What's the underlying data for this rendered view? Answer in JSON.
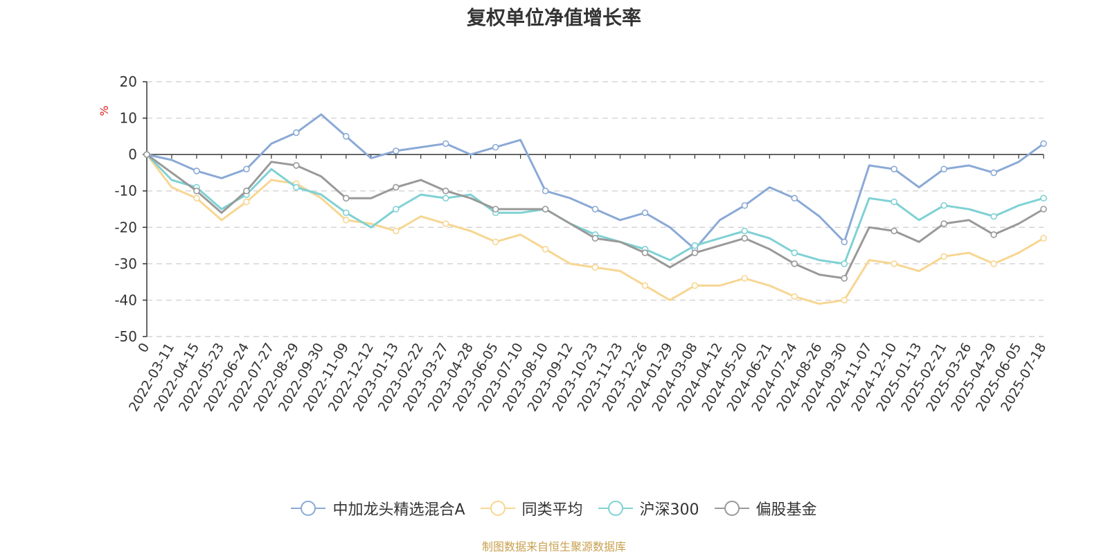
{
  "page": {
    "source_note": "制图数据来自恒生聚源数据库"
  },
  "chart_data": {
    "type": "line",
    "title": "复权单位净值增长率",
    "ylabel": "%",
    "xlabel": "",
    "ylim": [
      -50,
      20
    ],
    "yticks": [
      20,
      10,
      0,
      -10,
      -20,
      -30,
      -40,
      -50
    ],
    "y_gridlines": "dashed",
    "legend_position": "bottom",
    "x_tick_labels": [
      "0",
      "2022-03-11",
      "2022-04-15",
      "2022-05-23",
      "2022-06-24",
      "2022-07-27",
      "2022-08-29",
      "2022-09-30",
      "2022-11-09",
      "2022-12-12",
      "2023-01-13",
      "2023-02-22",
      "2023-03-27",
      "2023-04-28",
      "2023-06-05",
      "2023-07-10",
      "2023-08-10",
      "2023-09-12",
      "2023-10-23",
      "2023-11-23",
      "2023-12-26",
      "2024-01-29",
      "2024-03-08",
      "2024-04-12",
      "2024-05-20",
      "2024-06-21",
      "2024-07-24",
      "2024-08-26",
      "2024-09-30",
      "2024-11-07",
      "2024-12-10",
      "2025-01-13",
      "2025-02-21",
      "2025-03-26",
      "2025-04-29",
      "2025-06-05",
      "2025-07-18"
    ],
    "series": [
      {
        "name": "中加龙头精选混合A",
        "color": "#8aa9d6",
        "values": [
          0,
          -1.5,
          -4.5,
          -6.5,
          -4,
          3,
          6,
          11,
          5,
          -1,
          1,
          2,
          3,
          0,
          2,
          4,
          -10,
          -12,
          -15,
          -18,
          -16,
          -20,
          -26,
          -18,
          -14,
          -9,
          -12,
          -17,
          -24,
          -3,
          -4,
          -9,
          -4,
          -3,
          -5,
          -2,
          3
        ]
      },
      {
        "name": "同类平均",
        "color": "#f7d692",
        "values": [
          0,
          -9,
          -12,
          -18,
          -13,
          -7,
          -8,
          -12,
          -18,
          -19,
          -21,
          -17,
          -19,
          -21,
          -24,
          -22,
          -26,
          -30,
          -31,
          -32,
          -36,
          -40,
          -36,
          -36,
          -34,
          -36,
          -39,
          -41,
          -40,
          -29,
          -30,
          -32,
          -28,
          -27,
          -30,
          -27,
          -23
        ]
      },
      {
        "name": "沪深300",
        "color": "#7fd1d4",
        "values": [
          0,
          -7,
          -9,
          -15,
          -11,
          -4,
          -9,
          -11,
          -16,
          -20,
          -15,
          -11,
          -12,
          -11,
          -16,
          -16,
          -15,
          -19,
          -22,
          -24,
          -26,
          -29,
          -25,
          -23,
          -21,
          -23,
          -27,
          -29,
          -30,
          -12,
          -13,
          -18,
          -14,
          -15,
          -17,
          -14,
          -12
        ]
      },
      {
        "name": "偏股基金",
        "color": "#999999",
        "values": [
          0,
          -5,
          -10,
          -16,
          -10,
          -2,
          -3,
          -6,
          -12,
          -12,
          -9,
          -7,
          -10,
          -12,
          -15,
          -15,
          -15,
          -19,
          -23,
          -24,
          -27,
          -31,
          -27,
          -25,
          -23,
          -26,
          -30,
          -33,
          -34,
          -20,
          -21,
          -24,
          -19,
          -18,
          -22,
          -19,
          -15
        ]
      }
    ]
  }
}
